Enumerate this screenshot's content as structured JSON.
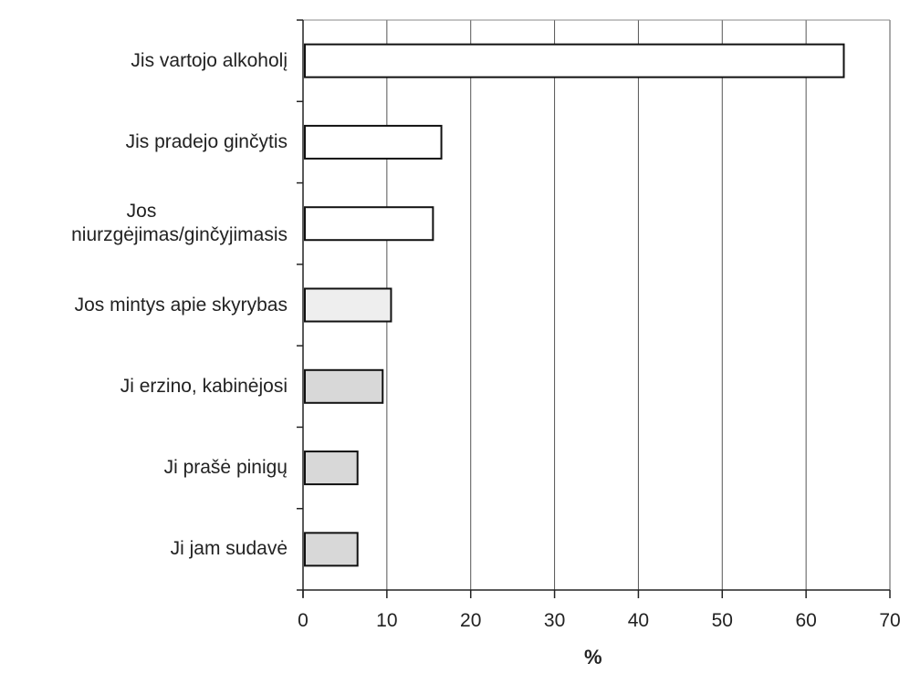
{
  "chart_data": {
    "type": "bar",
    "orientation": "horizontal",
    "categories": [
      "Jis vartojo alkoholį",
      "Jis pradejo ginčytis",
      "Jos niurzgėjimas/ginčyjimasis",
      "Jos mintys apie skyrybas",
      "Ji erzino, kabinėjosi",
      "Ji prašė pinigų",
      "Ji jam sudavė"
    ],
    "category_lines": [
      [
        "Jis vartojo alkoholį"
      ],
      [
        "Jis pradejo ginčytis"
      ],
      [
        "Jos",
        "niurzgėjimas/ginčyjimasis"
      ],
      [
        "Jos mintys apie skyrybas"
      ],
      [
        "Ji erzino, kabinėjosi"
      ],
      [
        "Ji prašė pinigų"
      ],
      [
        "Ji jam sudavė"
      ]
    ],
    "values": [
      64.5,
      16.5,
      15.5,
      10.5,
      9.5,
      6.5,
      6.5
    ],
    "fills": [
      "#ffffff",
      "#ffffff",
      "#ffffff",
      "#eeeeee",
      "#d8d8d8",
      "#d8d8d8",
      "#d8d8d8"
    ],
    "xlabel": "%",
    "ylabel": "",
    "xlim": [
      0,
      70
    ],
    "xticks": [
      0,
      10,
      20,
      30,
      40,
      50,
      60,
      70
    ],
    "grid": "vertical"
  }
}
